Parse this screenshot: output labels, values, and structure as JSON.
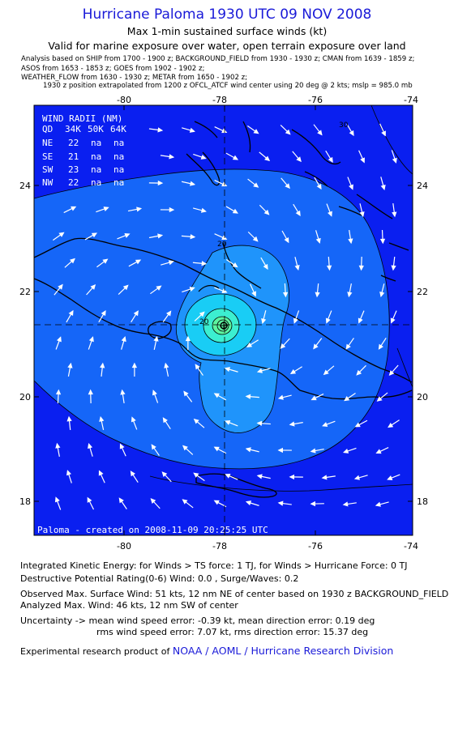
{
  "header": {
    "title": "Hurricane Paloma 1930 UTC 09 NOV 2008",
    "subtitle": "Max 1-min sustained surface winds (kt)",
    "validity": "Valid for marine exposure over water, open terrain exposure over land"
  },
  "analysis_notes": [
    "Analysis based on  SHIP from 1700 - 1900 z;  BACKGROUND_FIELD from 1930 - 1930 z;  CMAN from 1639 - 1859 z;",
    "ASOS from 1653 - 1853 z;  GOES from 1902 - 1902 z;",
    "WEATHER_FLOW from 1630 - 1930 z;   METAR from 1650 - 1902 z;",
    "1930 z position extrapolated from 1200 z OFCL_ATCF wind center using 20 deg @ 2 kts; mslp = 985.0 mb"
  ],
  "map": {
    "lon_ticks": [
      "-80",
      "-78",
      "-76",
      "-74"
    ],
    "lat_ticks": [
      "24",
      "22",
      "20",
      "18"
    ],
    "extent": {
      "lon_min": -81.75,
      "lon_max": -74,
      "lat_min": 17.35,
      "lat_max": 25.3
    },
    "storm_center": {
      "lon": -77.95,
      "lat": 21.3
    },
    "contour_labels": [
      "20",
      "20",
      "30"
    ],
    "credit": "Paloma  -  created  on  2008-11-09  20:25:25  UTC",
    "colors": {
      "deep": "#0a1ff0",
      "mid": "#1566f8",
      "light": "#1f94fb",
      "cyan": "#19cdf5",
      "aqua": "#3cefd0",
      "green": "#5df5a0"
    }
  },
  "wind_radii": {
    "title": "WIND RADII (NM)",
    "header": [
      "QD",
      "34K",
      "50K",
      "64K"
    ],
    "rows": [
      [
        "NE",
        "22",
        "na",
        "na"
      ],
      [
        "SE",
        "21",
        "na",
        "na"
      ],
      [
        "SW",
        "23",
        "na",
        "na"
      ],
      [
        "NW",
        "22",
        "na",
        "na"
      ]
    ]
  },
  "footer": {
    "ike": "Integrated Kinetic Energy:  for Winds > TS force: 1 TJ,  for Winds > Hurricane Force: 0 TJ",
    "dpr": "Destructive Potential Rating(0-6)   Wind: 0.0 , Surge/Waves: 0.2",
    "observed": "Observed Max. Surface Wind: 51 kts, 12 nm NE of center based on 1930 z BACKGROUND_FIELD",
    "analyzed": "Analyzed Max. Wind: 46 kts, 12 nm SW of center",
    "uncertainty1": "Uncertainty -> mean wind speed error:  -0.39 kt,   mean direction error: 0.19 deg",
    "uncertainty2": "rms wind speed error: 7.07 kt,   rms direction error: 15.37 deg",
    "product_prefix": "Experimental research product of",
    "product_org": "NOAA / AOML / Hurricane Research Division"
  }
}
